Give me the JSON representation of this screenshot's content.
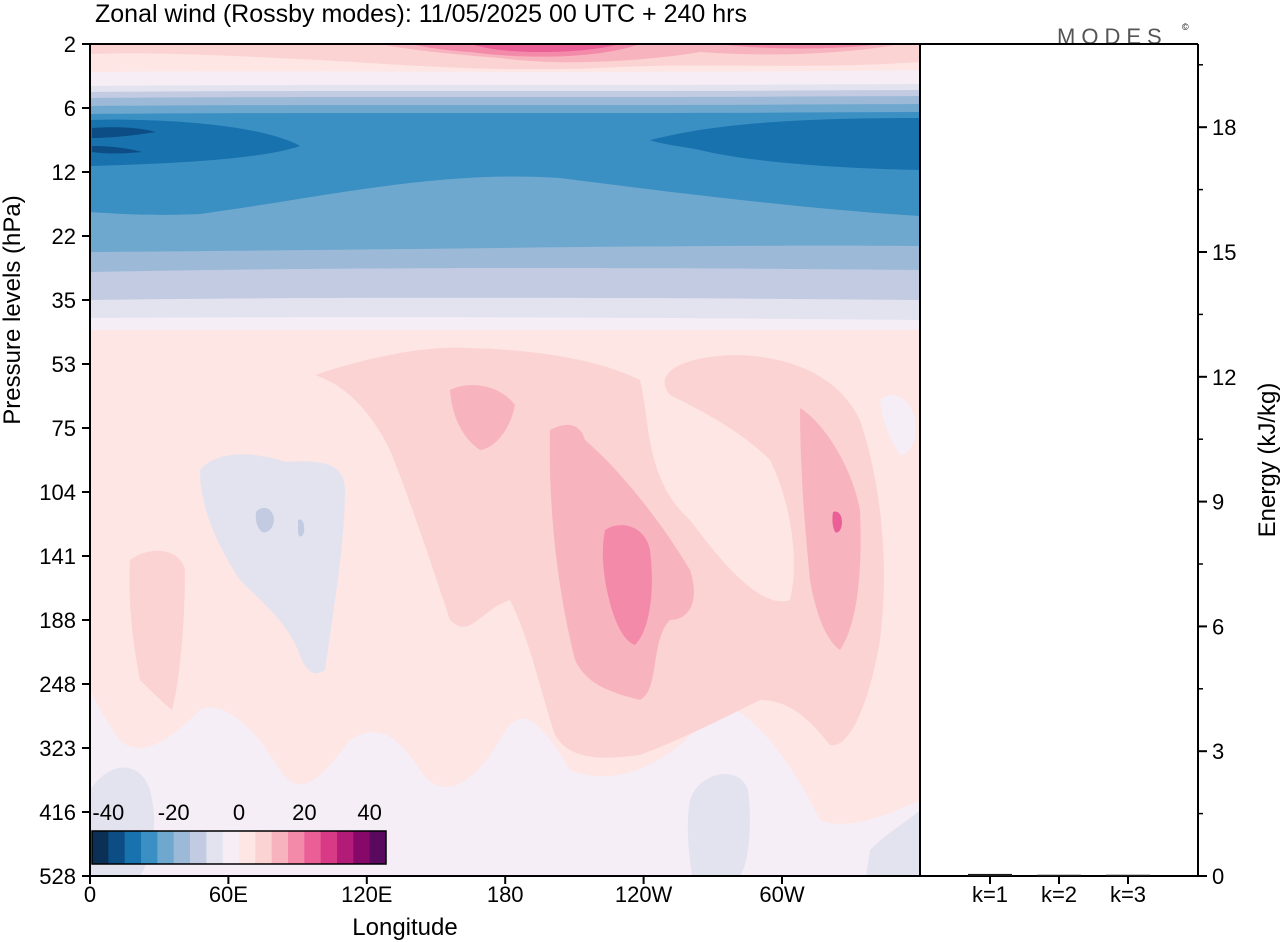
{
  "title": "Zonal wind (Rossby modes):  11/05/2025  00 UTC  + 240 hrs",
  "logo": "MODES",
  "logo_mark": "©",
  "colors": {
    "scale": [
      "#0b2f55",
      "#0b4d84",
      "#1872ae",
      "#3a8fc3",
      "#6ea8ce",
      "#9cbad8",
      "#c3cbe2",
      "#e3e3ef",
      "#f6eef4",
      "#fde6e4",
      "#fbd3d3",
      "#f8b4be",
      "#f48aaa",
      "#eb5f97",
      "#d83a86",
      "#b21b78",
      "#86096a",
      "#5a0a5e"
    ],
    "bg": "#f5eef6"
  },
  "chart_data": [
    {
      "type": "heatmap",
      "title": "Zonal wind (Rossby modes):  11/05/2025  00 UTC  + 240 hrs",
      "xlabel": "Longitude",
      "ylabel": "Pressure levels (hPa)",
      "x_ticks": [
        "0",
        "60E",
        "120E",
        "180",
        "120W",
        "60W"
      ],
      "y_ticks": [
        "2",
        "6",
        "12",
        "22",
        "35",
        "53",
        "75",
        "104",
        "141",
        "188",
        "248",
        "323",
        "416",
        "528"
      ],
      "colorbar": {
        "ticks": [
          "-40",
          "-20",
          "0",
          "20",
          "40"
        ],
        "min": -45,
        "max": 45,
        "step": 5
      }
    },
    {
      "type": "bar",
      "ylabel": "Energy (kJ/kg)",
      "categories": [
        "k=1",
        "k=2",
        "k=3"
      ],
      "values": [
        0.05,
        0.03,
        0.03
      ],
      "y_ticks": [
        "0",
        "3",
        "6",
        "9",
        "12",
        "15",
        "18"
      ],
      "ylim": [
        0,
        20
      ]
    }
  ]
}
